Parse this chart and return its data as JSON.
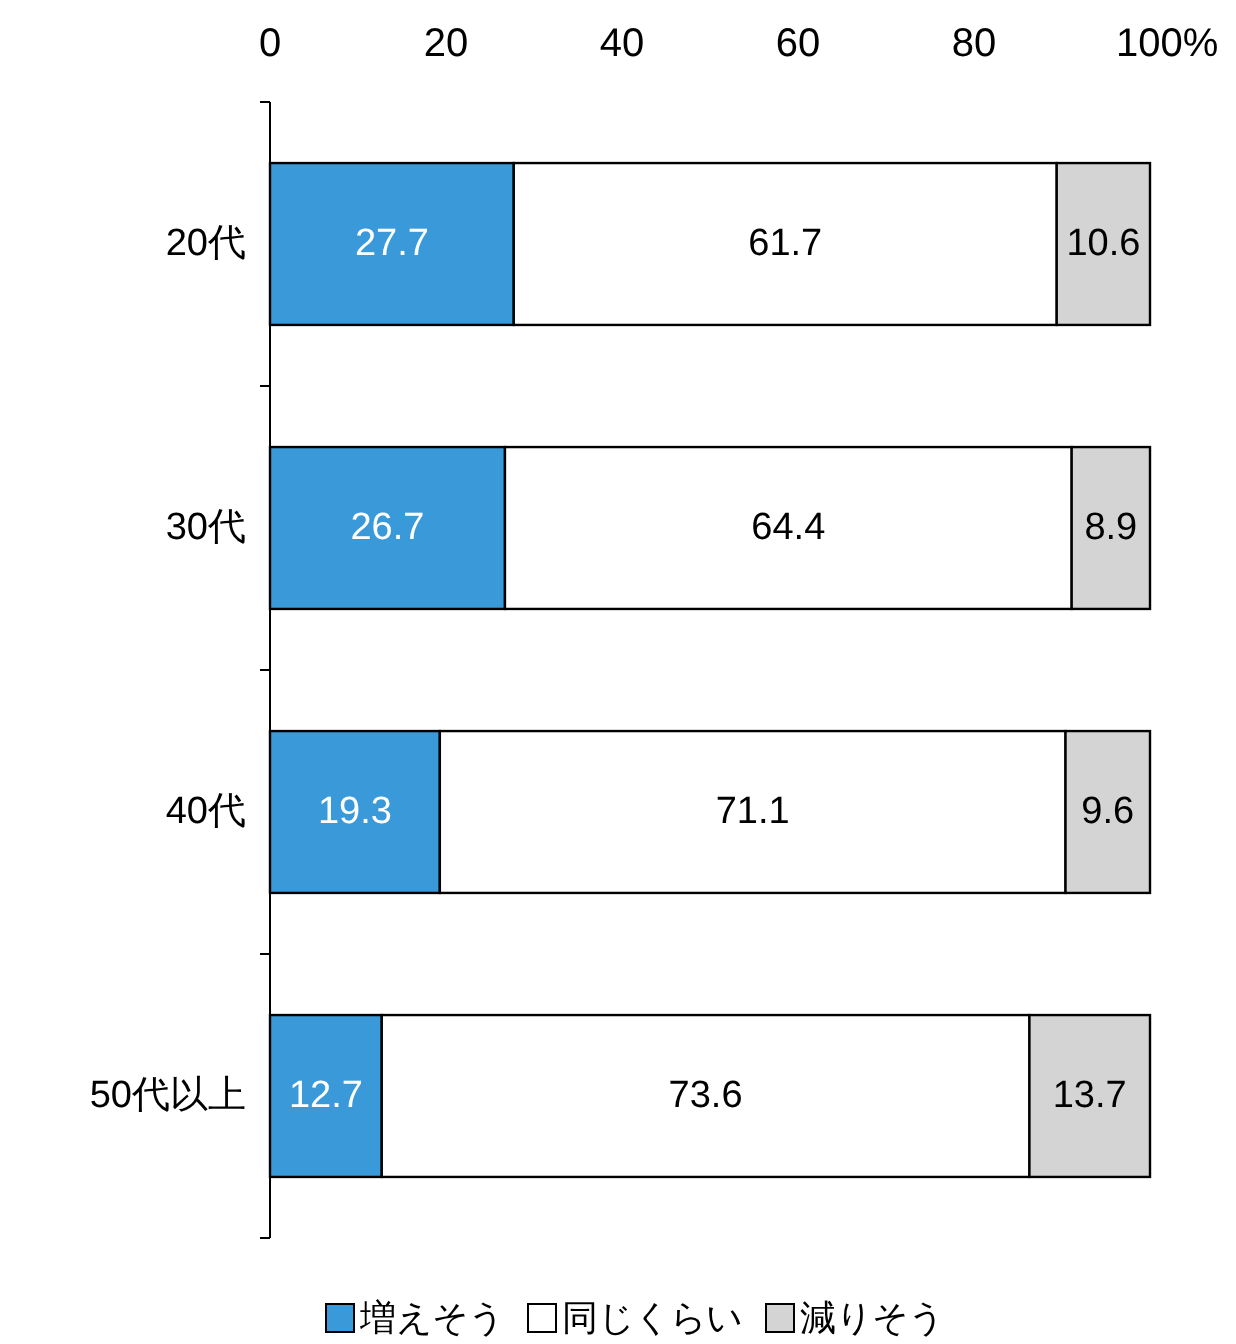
{
  "chart_data": {
    "type": "bar",
    "orientation": "horizontal",
    "stacked": true,
    "categories": [
      "20代",
      "30代",
      "40代",
      "50代以上"
    ],
    "series": [
      {
        "name": "増えそう",
        "color": "#3a9ad9",
        "values": [
          27.7,
          26.7,
          19.3,
          12.7
        ]
      },
      {
        "name": "同じくらい",
        "color": "#ffffff",
        "values": [
          61.7,
          64.4,
          71.1,
          73.6
        ]
      },
      {
        "name": "減りそう",
        "color": "#d4d4d4",
        "values": [
          10.6,
          8.9,
          9.6,
          13.7
        ]
      }
    ],
    "xlim": [
      0,
      100
    ],
    "xticks": [
      0,
      20,
      40,
      60,
      80,
      {
        "value": 100,
        "label": "100%"
      }
    ],
    "data_labels": true,
    "legend": "bottom"
  }
}
